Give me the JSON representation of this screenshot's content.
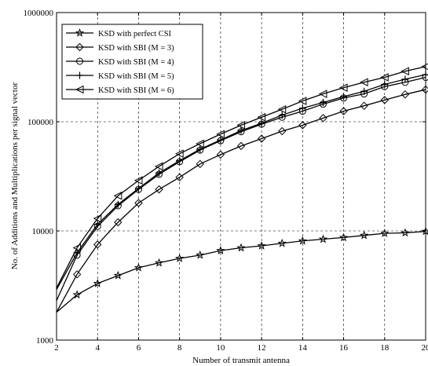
{
  "chart_data": {
    "type": "line",
    "title": "",
    "xlabel": "Number of transmit antenna",
    "ylabel": "No. of Additions and Multiplications per signal vector",
    "x_scale": "linear",
    "y_scale": "log",
    "xlim": [
      2,
      20
    ],
    "ylim": [
      1000,
      1000000
    ],
    "grid": true,
    "legend_position": "top-left",
    "x_ticks": [
      2,
      4,
      6,
      8,
      10,
      12,
      14,
      16,
      18,
      20
    ],
    "x_tick_labels": [
      "2",
      "4",
      "6",
      "8",
      "10",
      "12",
      "14",
      "16",
      "18",
      "20"
    ],
    "y_ticks": [
      1000,
      10000,
      100000,
      1000000
    ],
    "y_tick_labels": [
      "1000",
      "10000",
      "100000",
      "1000000"
    ],
    "x": [
      2,
      3,
      4,
      5,
      6,
      7,
      8,
      9,
      10,
      11,
      12,
      13,
      14,
      15,
      16,
      17,
      18,
      19,
      20
    ],
    "series": [
      {
        "name": "KSD with perfect CSI",
        "marker": "star",
        "values": [
          1800,
          2600,
          3300,
          3900,
          4600,
          5100,
          5600,
          6000,
          6600,
          7000,
          7300,
          7700,
          8100,
          8400,
          8700,
          9100,
          9500,
          9600,
          9900
        ]
      },
      {
        "name": "KSD with SBI (M = 3)",
        "marker": "diamond",
        "values": [
          1800,
          4000,
          7500,
          12000,
          18000,
          24000,
          31000,
          41000,
          50000,
          60000,
          70000,
          82000,
          93000,
          108000,
          125000,
          140000,
          158000,
          178000,
          197000
        ]
      },
      {
        "name": "KSD with SBI (M = 4)",
        "marker": "circle",
        "values": [
          2300,
          6000,
          11000,
          17000,
          24000,
          33000,
          43000,
          55000,
          67000,
          81000,
          95000,
          110000,
          125000,
          145000,
          165000,
          180000,
          210000,
          230000,
          255000
        ]
      },
      {
        "name": "KSD with SBI (M = 5)",
        "marker": "plus",
        "values": [
          2900,
          6300,
          11500,
          17500,
          24500,
          34000,
          44000,
          56000,
          68000,
          83000,
          97000,
          115000,
          133000,
          150000,
          170000,
          190000,
          220000,
          245000,
          270000
        ]
      },
      {
        "name": "KSD with SBI (M = 6)",
        "marker": "triangle-left",
        "values": [
          3000,
          7000,
          13000,
          21000,
          29000,
          39000,
          51000,
          63000,
          77000,
          93000,
          110000,
          130000,
          155000,
          180000,
          205000,
          230000,
          255000,
          290000,
          320000
        ]
      }
    ]
  }
}
